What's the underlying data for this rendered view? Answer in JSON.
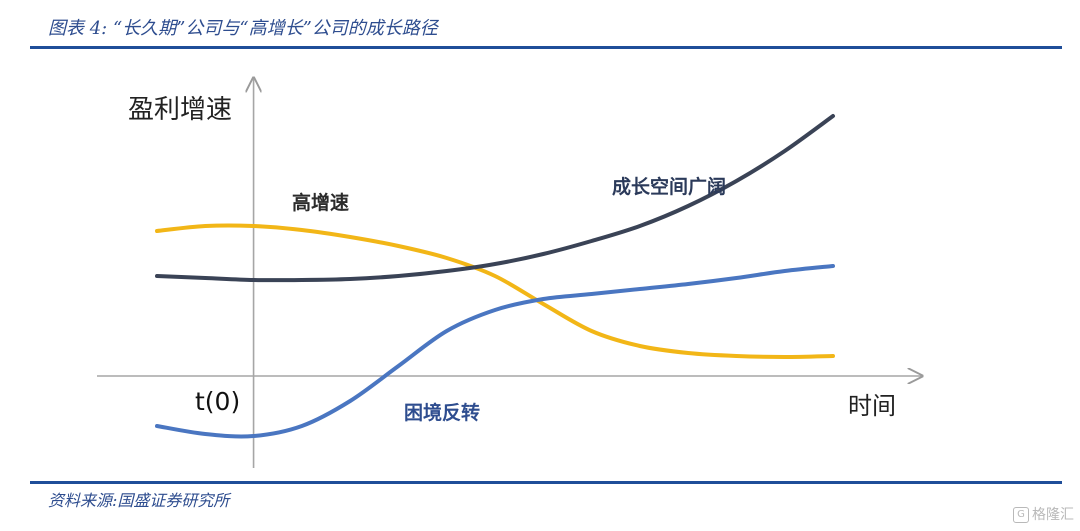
{
  "header": {
    "title": "图表 4:  “长久期”公司与“高增长”公司的成长路径"
  },
  "footer": {
    "source": "资料来源:国盛证券研究所",
    "watermark": "格隆汇",
    "watermark_icon": "G"
  },
  "chart_data": {
    "type": "line",
    "ylabel": "盈利增速",
    "xlabel": "时间",
    "origin_label": "t(0)",
    "xlim": [
      -1,
      6
    ],
    "ylim": [
      -1,
      3
    ],
    "grid": false,
    "legend": "none",
    "series": [
      {
        "name": "高增速",
        "color": "#F2B617",
        "x": [
          -1,
          -0.5,
          0,
          0.5,
          1,
          1.5,
          2,
          2.5,
          3,
          3.5,
          4,
          4.5,
          5,
          5.5,
          6
        ],
        "y": [
          1.45,
          1.5,
          1.5,
          1.46,
          1.39,
          1.3,
          1.18,
          1.0,
          0.72,
          0.45,
          0.3,
          0.23,
          0.2,
          0.19,
          0.2
        ]
      },
      {
        "name": "成长空间广阔",
        "color": "#3A4356",
        "x": [
          -1,
          -0.5,
          0,
          0.5,
          1,
          1.5,
          2,
          2.5,
          3,
          3.5,
          4,
          4.5,
          5,
          5.5,
          6
        ],
        "y": [
          1.0,
          0.98,
          0.96,
          0.96,
          0.97,
          1.0,
          1.05,
          1.12,
          1.22,
          1.35,
          1.5,
          1.7,
          1.95,
          2.25,
          2.6
        ]
      },
      {
        "name": "困境反转",
        "color": "#4A76C1",
        "x": [
          -1,
          -0.5,
          0,
          0.5,
          1,
          1.5,
          2,
          2.5,
          3,
          3.5,
          4,
          4.5,
          5,
          5.5,
          6
        ],
        "y": [
          -0.5,
          -0.58,
          -0.6,
          -0.5,
          -0.25,
          0.1,
          0.45,
          0.66,
          0.77,
          0.82,
          0.87,
          0.92,
          0.98,
          1.05,
          1.1
        ]
      }
    ]
  }
}
